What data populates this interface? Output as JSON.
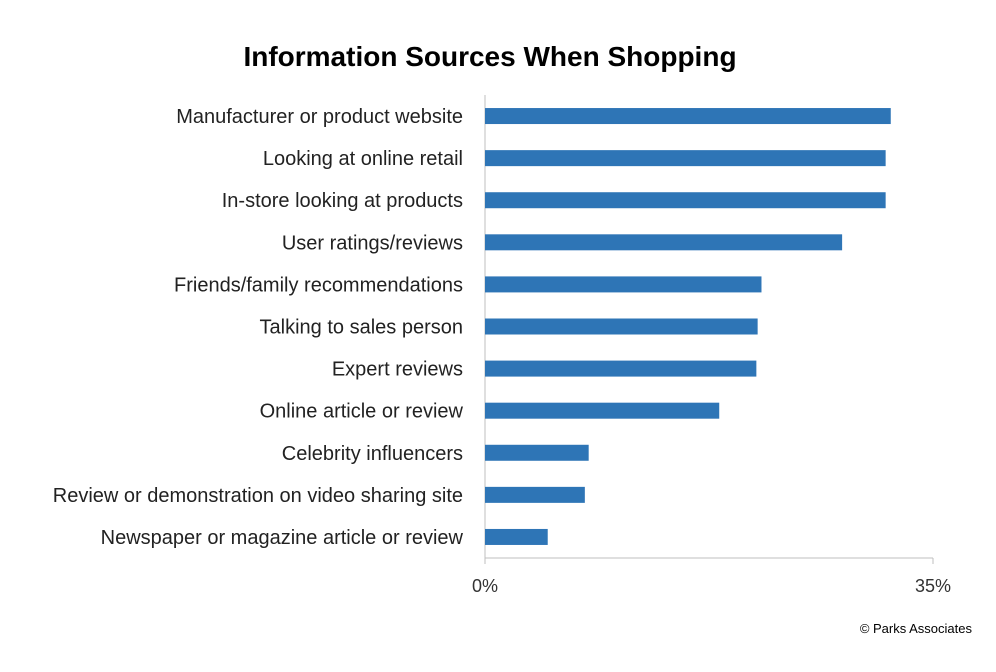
{
  "chart_data": {
    "type": "bar",
    "orientation": "horizontal",
    "title": "Information Sources When Shopping",
    "categories": [
      "Manufacturer or product website",
      "Looking at online retail",
      "In-store looking at products",
      "User ratings/reviews",
      "Friends/family recommendations",
      "Talking to sales person",
      "Expert reviews",
      "Online article or review",
      "Celebrity influencers",
      "Review or demonstration on video sharing site",
      "Newspaper or magazine article or review"
    ],
    "values": [
      31.7,
      31.3,
      31.3,
      27.9,
      21.6,
      21.3,
      21.2,
      18.3,
      8.1,
      7.8,
      4.9
    ],
    "xlim": [
      0,
      35
    ],
    "xticks": [
      "0%",
      "35%"
    ],
    "grid": false,
    "bar_color": "#2E75B6"
  },
  "footer": {
    "copyright": "© Parks Associates"
  }
}
